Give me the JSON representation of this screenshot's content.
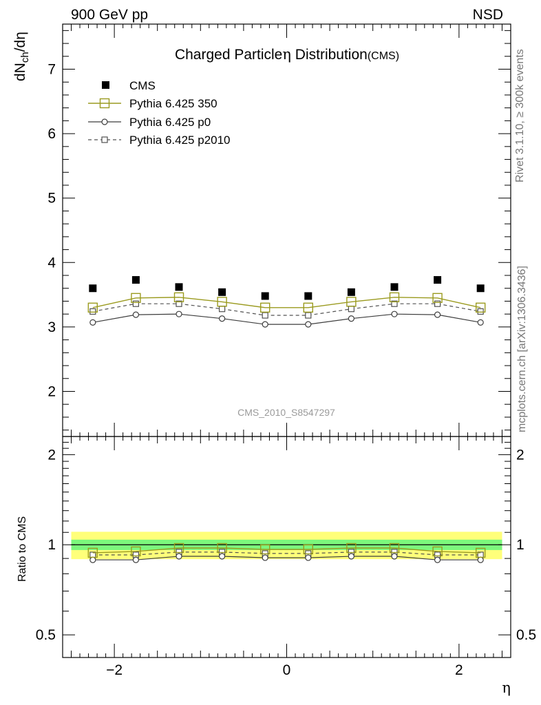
{
  "header": {
    "left": "900 GeV pp",
    "right": "NSD"
  },
  "side_text": {
    "rivet": "Rivet 3.1.10, ≥ 300k events",
    "mcplots": "mcplots.cern.ch [arXiv:1306.3436]"
  },
  "colors": {
    "cms": "#000000",
    "pythia_350": "#9a9a1e",
    "pythia_p0": "#3c3c3c",
    "pythia_p2010": "#505050",
    "band_yellow": "#ffff7a",
    "band_green": "#7cf77c"
  },
  "chart_data": [
    {
      "type": "scatter",
      "title_main": "Charged Particle",
      "title_symbol": "η",
      "title_rest": " Distribution",
      "title_suffix": "(CMS)",
      "ylabel": "dN",
      "ylabel_sub": "ch",
      "ylabel_rest": "/dη",
      "watermark": "CMS_2010_S8547297",
      "xlim": [
        -2.6,
        2.6
      ],
      "ylim": [
        1.3,
        7.7
      ],
      "y_ticks": [
        2,
        3,
        4,
        5,
        6,
        7
      ],
      "x": [
        -2.25,
        -1.75,
        -1.25,
        -0.75,
        -0.25,
        0.25,
        0.75,
        1.25,
        1.75,
        2.25
      ],
      "series": [
        {
          "name": "CMS",
          "style": "data",
          "values": [
            3.6,
            3.73,
            3.62,
            3.54,
            3.48,
            3.48,
            3.54,
            3.62,
            3.73,
            3.6
          ]
        },
        {
          "name": "Pythia 6.425 350",
          "style": "solid-bigsquare",
          "values": [
            3.3,
            3.45,
            3.46,
            3.39,
            3.3,
            3.3,
            3.39,
            3.46,
            3.45,
            3.3
          ]
        },
        {
          "name": "Pythia 6.425 p0",
          "style": "solid-circle",
          "values": [
            3.07,
            3.19,
            3.2,
            3.13,
            3.04,
            3.04,
            3.13,
            3.2,
            3.19,
            3.07
          ]
        },
        {
          "name": "Pythia 6.425 p2010",
          "style": "dashed-square",
          "values": [
            3.24,
            3.36,
            3.36,
            3.28,
            3.18,
            3.18,
            3.28,
            3.36,
            3.36,
            3.24
          ]
        }
      ]
    },
    {
      "type": "line",
      "ylabel": "Ratio to CMS",
      "xlabel": "η",
      "xlim": [
        -2.6,
        2.6
      ],
      "ylim": [
        0.42,
        2.3
      ],
      "y_ticks": [
        0.5,
        1,
        2
      ],
      "y_tick_labels": [
        "0.5",
        "1",
        "2"
      ],
      "x_ticks": [
        -2,
        0,
        2
      ],
      "x_tick_labels": [
        "−2",
        "0",
        "2"
      ],
      "x": [
        -2.25,
        -1.75,
        -1.25,
        -0.75,
        -0.25,
        0.25,
        0.75,
        1.25,
        1.75,
        2.25
      ],
      "band_range": [
        -2.5,
        2.5
      ],
      "band_yellow": [
        0.895,
        1.105
      ],
      "band_green": [
        0.96,
        1.04
      ],
      "series": [
        {
          "name": "Pythia 6.425 350",
          "style": "solid-bigsquare",
          "values": [
            0.94,
            0.95,
            0.975,
            0.975,
            0.965,
            0.965,
            0.975,
            0.975,
            0.95,
            0.94
          ]
        },
        {
          "name": "Pythia 6.425 p0",
          "style": "solid-circle",
          "values": [
            0.89,
            0.89,
            0.915,
            0.915,
            0.905,
            0.905,
            0.915,
            0.915,
            0.89,
            0.89
          ]
        },
        {
          "name": "Pythia 6.425 p2010",
          "style": "dashed-square",
          "values": [
            0.925,
            0.925,
            0.945,
            0.945,
            0.935,
            0.935,
            0.945,
            0.945,
            0.925,
            0.925
          ]
        }
      ]
    }
  ]
}
